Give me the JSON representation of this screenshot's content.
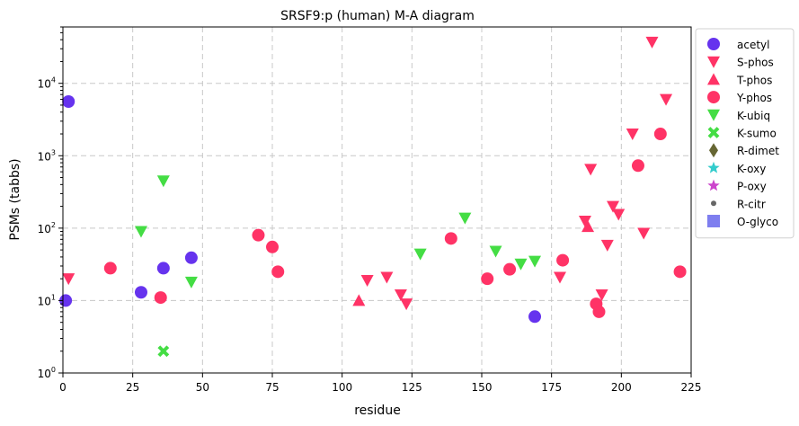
{
  "chart_data": {
    "type": "scatter",
    "title": "SRSF9:p (human) M-A diagram",
    "xlabel": "residue",
    "ylabel": "PSMs (tabbs)",
    "xlim": [
      0,
      225
    ],
    "ylim": [
      1,
      60000
    ],
    "yscale": "log",
    "grid": true,
    "legend_position": "outside-right",
    "x_ticks": [
      0,
      25,
      50,
      75,
      100,
      125,
      150,
      175,
      200,
      225
    ],
    "y_ticks": [
      {
        "value": 1,
        "base": "10",
        "exp": "0"
      },
      {
        "value": 10,
        "base": "10",
        "exp": "1"
      },
      {
        "value": 100,
        "base": "10",
        "exp": "2"
      },
      {
        "value": 1000,
        "base": "10",
        "exp": "3"
      },
      {
        "value": 10000,
        "base": "10",
        "exp": "4"
      }
    ],
    "series": [
      {
        "name": "acetyl",
        "marker": "circle",
        "color": "#6633ee",
        "points": [
          [
            1,
            10
          ],
          [
            2,
            5600
          ],
          [
            28,
            13
          ],
          [
            36,
            28
          ],
          [
            46,
            39
          ],
          [
            169,
            6
          ]
        ]
      },
      {
        "name": "S-phos",
        "marker": "triangle-down",
        "color": "#ff3366",
        "points": [
          [
            2,
            20
          ],
          [
            109,
            19
          ],
          [
            116,
            21
          ],
          [
            121,
            12
          ],
          [
            123,
            9
          ],
          [
            178,
            21
          ],
          [
            187,
            125
          ],
          [
            189,
            650
          ],
          [
            193,
            12
          ],
          [
            195,
            58
          ],
          [
            197,
            200
          ],
          [
            199,
            155
          ],
          [
            204,
            2000
          ],
          [
            208,
            85
          ],
          [
            211,
            37000
          ],
          [
            216,
            6000
          ]
        ]
      },
      {
        "name": "T-phos",
        "marker": "triangle-up",
        "color": "#ff3366",
        "points": [
          [
            106,
            10
          ],
          [
            188,
            105
          ]
        ]
      },
      {
        "name": "Y-phos",
        "marker": "circle",
        "color": "#ff3366",
        "points": [
          [
            17,
            28
          ],
          [
            35,
            11
          ],
          [
            70,
            80
          ],
          [
            75,
            55
          ],
          [
            77,
            25
          ],
          [
            139,
            72
          ],
          [
            152,
            20
          ],
          [
            160,
            27
          ],
          [
            179,
            36
          ],
          [
            191,
            9
          ],
          [
            192,
            7
          ],
          [
            206,
            730
          ],
          [
            214,
            2000
          ],
          [
            221,
            25
          ]
        ]
      },
      {
        "name": "K-ubiq",
        "marker": "triangle-down",
        "color": "#44dd44",
        "points": [
          [
            28,
            90
          ],
          [
            36,
            450
          ],
          [
            46,
            18
          ],
          [
            128,
            44
          ],
          [
            144,
            138
          ],
          [
            155,
            48
          ],
          [
            164,
            32
          ],
          [
            169,
            35
          ]
        ]
      },
      {
        "name": "K-sumo",
        "marker": "x",
        "color": "#44dd44",
        "points": [
          [
            36,
            2
          ]
        ]
      },
      {
        "name": "R-dimet",
        "marker": "diamond",
        "color": "#666633",
        "points": []
      },
      {
        "name": "K-oxy",
        "marker": "star",
        "color": "#33cccc",
        "points": []
      },
      {
        "name": "P-oxy",
        "marker": "star",
        "color": "#cc44cc",
        "points": []
      },
      {
        "name": "R-citr",
        "marker": "dot",
        "color": "#666666",
        "points": []
      },
      {
        "name": "O-glyco",
        "marker": "square",
        "color": "#7777ee",
        "points": []
      }
    ]
  }
}
